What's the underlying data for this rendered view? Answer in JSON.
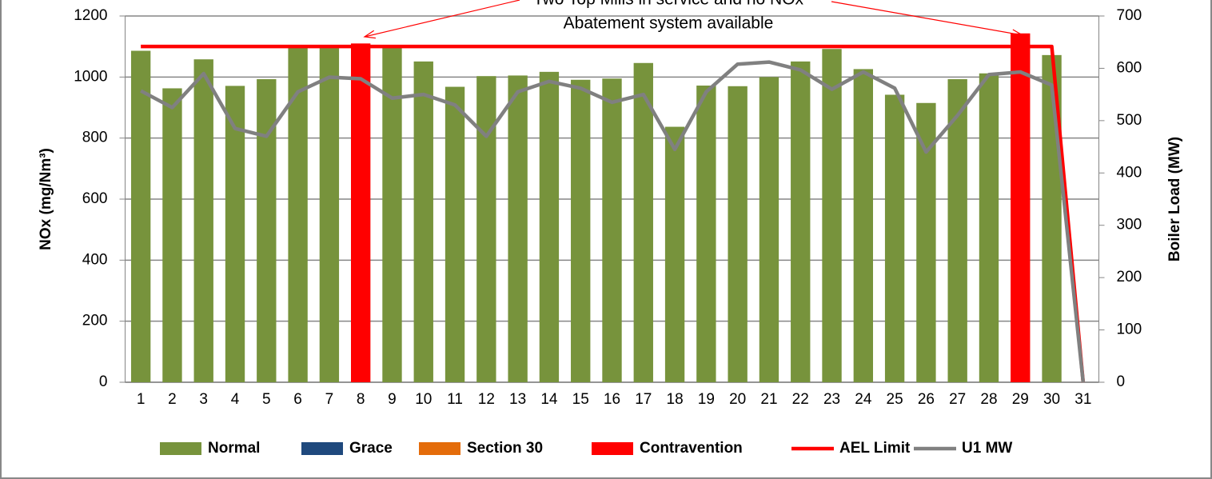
{
  "chart_data": {
    "type": "bar",
    "annotation": [
      "Two Top Mills in service and no NOx",
      "Abatement system available"
    ],
    "annotation_color": "#ff0000",
    "y_label": "NOx (mg/Nm³)",
    "y2_label": "Boiler Load (MW)",
    "categories": [
      "1",
      "2",
      "3",
      "4",
      "5",
      "6",
      "7",
      "8",
      "9",
      "10",
      "11",
      "12",
      "13",
      "14",
      "15",
      "16",
      "17",
      "18",
      "19",
      "20",
      "21",
      "22",
      "23",
      "24",
      "25",
      "26",
      "27",
      "28",
      "29",
      "30",
      "31"
    ],
    "series": [
      {
        "name": "Normal",
        "type": "bar",
        "color": "#77933c",
        "values": [
          1086,
          963,
          1058,
          971,
          993,
          1100,
          1095,
          null,
          1100,
          1051,
          968,
          1003,
          1005,
          1017,
          991,
          995,
          1046,
          837,
          972,
          970,
          1000,
          1051,
          1092,
          1026,
          942,
          915,
          993,
          1012,
          null,
          1072,
          0
        ]
      },
      {
        "name": "Grace",
        "type": "bar",
        "color": "#1f497d",
        "values": [
          null,
          null,
          null,
          null,
          null,
          null,
          null,
          null,
          null,
          null,
          null,
          null,
          null,
          null,
          null,
          null,
          null,
          null,
          null,
          null,
          null,
          null,
          null,
          null,
          null,
          null,
          null,
          null,
          null,
          null,
          null
        ]
      },
      {
        "name": "Section 30",
        "type": "bar",
        "color": "#e46c0a",
        "values": [
          null,
          null,
          null,
          null,
          null,
          null,
          null,
          null,
          null,
          null,
          null,
          null,
          null,
          null,
          null,
          null,
          null,
          null,
          null,
          null,
          null,
          null,
          null,
          null,
          null,
          null,
          null,
          null,
          null,
          null,
          null
        ]
      },
      {
        "name": "Contravention",
        "type": "bar",
        "color": "#ff0000",
        "values": [
          null,
          null,
          null,
          null,
          null,
          null,
          null,
          1110,
          null,
          null,
          null,
          null,
          null,
          null,
          null,
          null,
          null,
          null,
          null,
          null,
          null,
          null,
          null,
          null,
          null,
          null,
          null,
          null,
          1143,
          null,
          null
        ]
      },
      {
        "name": "AEL Limit",
        "type": "line",
        "color": "#ff0000",
        "values": [
          1100,
          1100,
          1100,
          1100,
          1100,
          1100,
          1100,
          1100,
          1100,
          1100,
          1100,
          1100,
          1100,
          1100,
          1100,
          1100,
          1100,
          1100,
          1100,
          1100,
          1100,
          1100,
          1100,
          1100,
          1100,
          1100,
          1100,
          1100,
          1100,
          1100,
          0
        ]
      },
      {
        "name": "U1 MW",
        "type": "line",
        "axis": "y2",
        "color": "#808080",
        "values": [
          557,
          525,
          590,
          485,
          470,
          555,
          583,
          580,
          543,
          550,
          530,
          470,
          555,
          575,
          562,
          535,
          550,
          445,
          555,
          608,
          612,
          597,
          560,
          593,
          562,
          440,
          510,
          588,
          593,
          568,
          0
        ]
      }
    ],
    "ylim": [
      0,
      1200
    ],
    "yticks": [
      0,
      200,
      400,
      600,
      800,
      1000,
      1200
    ],
    "y2lim": [
      0,
      700
    ],
    "y2ticks": [
      0,
      100,
      200,
      300,
      400,
      500,
      600,
      700
    ],
    "grid": true
  }
}
